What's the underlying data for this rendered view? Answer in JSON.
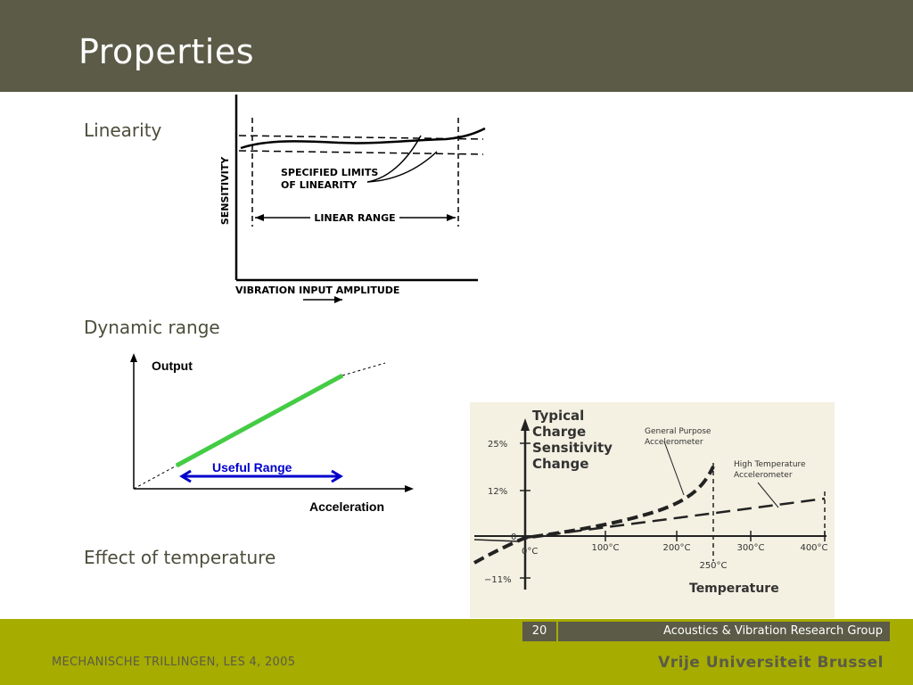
{
  "slide": {
    "title": "Properties",
    "sections": [
      "Linearity",
      "Dynamic range",
      "Effect of temperature"
    ]
  },
  "linearity_figure": {
    "ylabel": "SENSITIVITY",
    "xlabel": "VIBRATION INPUT AMPLITUDE",
    "annotation_line1": "SPECIFIED LIMITS",
    "annotation_line2": "OF LINEARITY",
    "range_label": "LINEAR RANGE"
  },
  "dynamic_range_figure": {
    "ylabel": "Output",
    "xlabel": "Acceleration",
    "range_label": "Useful Range",
    "colors": {
      "line": "#44cc44",
      "arrow": "#0000cc"
    }
  },
  "temperature_figure": {
    "title_lines": [
      "Typical",
      "Charge",
      "Sensitivity",
      "Change"
    ],
    "series_labels": {
      "general_line1": "General Purpose",
      "general_line2": "Accelerometer",
      "hightemp_line1": "High Temperature",
      "hightemp_line2": "Accelerometer"
    },
    "y_ticks": [
      "25%",
      "12%",
      "0",
      "−11%"
    ],
    "x_ticks": [
      "0°C",
      "100°C",
      "200°C",
      "300°C",
      "400°C"
    ],
    "marker_label": "250°C",
    "xlabel": "Temperature"
  },
  "footer": {
    "page_number": "20",
    "group": "Acoustics & Vibration Research Group",
    "course": "MECHANISCHE TRILLINGEN, LES 4, 2005",
    "university": "Vrije Universiteit Brussel"
  },
  "colors": {
    "header": "#5b5b47",
    "footer": "#a6ac00",
    "temperature_bg": "#f4f0e2"
  }
}
